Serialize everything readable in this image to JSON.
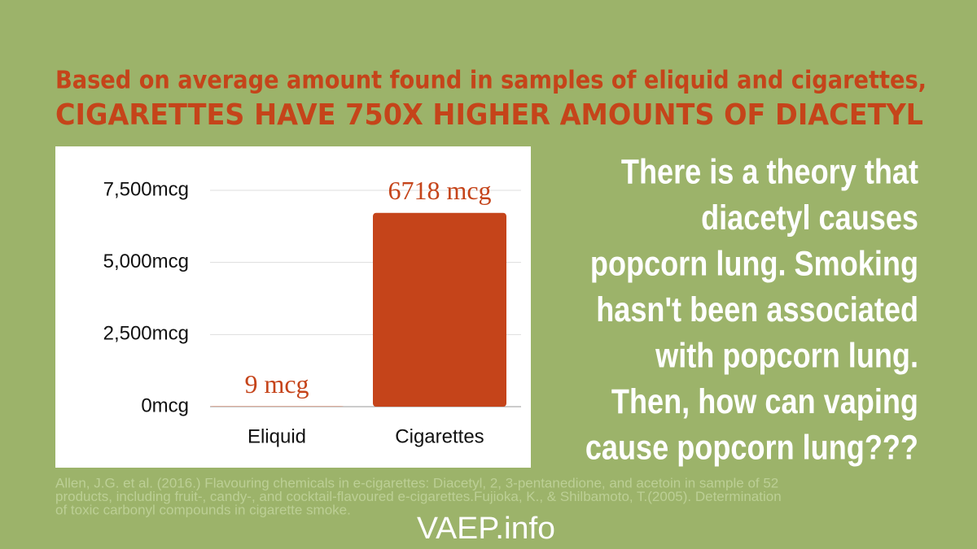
{
  "chart_data": {
    "type": "bar",
    "title": "Based on average amount found in samples of eliquid and cigarettes,",
    "subtitle": "CIGARETTES HAVE 750X HIGHER AMOUNTS OF DIACETYL",
    "categories": [
      "Eliquid",
      "Cigarettes"
    ],
    "values": [
      9,
      6718
    ],
    "value_labels": [
      "9 mcg",
      "6718 mcg"
    ],
    "color": "#c5441a",
    "ylim": [
      0,
      7500
    ],
    "yticks": [
      {
        "value": 0,
        "label": "0mcg"
      },
      {
        "value": 2500,
        "label": "2,500mcg"
      },
      {
        "value": 5000,
        "label": "5,000mcg"
      },
      {
        "value": 7500,
        "label": "7,500mcg"
      }
    ],
    "grid": true,
    "annotation_lines": [
      "There is a theory  that",
      "diacetyl causes",
      "popcorn lung. Smoking",
      "hasn't been associated",
      "with popcorn lung.",
      "Then, how can vaping",
      "cause popcorn lung???"
    ],
    "source_lines": [
      "Allen, J.G. et al. (2016.) Flavouring chemicals in e-cigarettes: Diacetyl, 2, 3-pentanedione, and acetoin in sample of 52",
      "products, including fruit-, candy-, and cocktail-flavoured e-cigarettes.Fujioka, K., & Shilbamoto, T.(2005). Determination",
      "of toxic carbonyl compounds in cigarette smoke."
    ]
  },
  "logo": "VAEP.info"
}
